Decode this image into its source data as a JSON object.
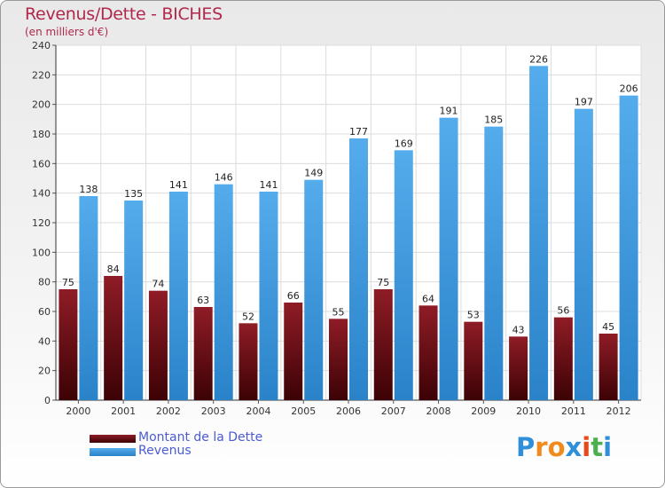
{
  "chart_data": {
    "type": "bar",
    "title": "Revenus/Dette - BICHES",
    "subtitle": "(en milliers d'€)",
    "xlabel": "",
    "ylabel": "",
    "ylim": [
      0,
      240
    ],
    "yticks": [
      0,
      20,
      40,
      60,
      80,
      100,
      120,
      140,
      160,
      180,
      200,
      220,
      240
    ],
    "grid": true,
    "categories": [
      "2000",
      "2001",
      "2002",
      "2003",
      "2004",
      "2005",
      "2006",
      "2007",
      "2008",
      "2009",
      "2010",
      "2011",
      "2012"
    ],
    "series": [
      {
        "name": "Montant de la Dette",
        "color": "#6e0f14",
        "values": [
          75,
          84,
          74,
          63,
          52,
          66,
          55,
          75,
          64,
          53,
          43,
          56,
          45
        ]
      },
      {
        "name": "Revenus",
        "color": "#3d97dc",
        "values": [
          138,
          135,
          141,
          146,
          141,
          149,
          177,
          169,
          191,
          185,
          226,
          197,
          206
        ]
      }
    ],
    "legend_position": "bottom-left"
  },
  "logo": {
    "letters": [
      "P",
      "r",
      "o",
      "x",
      "i",
      "t",
      "i"
    ],
    "colors": [
      "#2f8fd8",
      "#f08a1c",
      "#f08a1c",
      "#2f8fd8",
      "#e64a19",
      "#4caf50",
      "#2f8fd8"
    ]
  }
}
